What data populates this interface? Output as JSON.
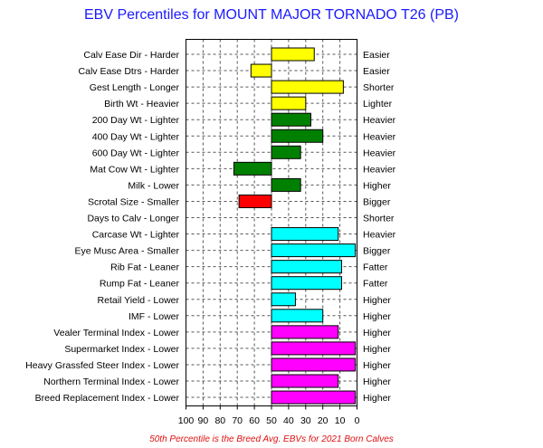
{
  "chart_data": {
    "type": "bar",
    "title": "EBV Percentiles for MOUNT MAJOR TORNADO T26 (PB)",
    "footnote": "50th Percentile is the Breed Avg. EBVs for 2021 Born Calves",
    "x_axis": {
      "range": [
        100,
        0
      ],
      "ticks": [
        "100",
        "90",
        "80",
        "70",
        "60",
        "50",
        "40",
        "30",
        "20",
        "10",
        "0"
      ],
      "grid": true
    },
    "colors": {
      "yellow": "#ffff00",
      "green": "#008000",
      "red": "#ff0000",
      "cyan": "#00ffff",
      "magenta": "#ff00ff"
    },
    "traits": [
      {
        "left_label": "Calv Ease Dir - Harder",
        "right_label": "Easier",
        "percentile": 25,
        "color": "yellow"
      },
      {
        "left_label": "Calv Ease Dtrs - Harder",
        "right_label": "Easier",
        "percentile": 62,
        "color": "yellow"
      },
      {
        "left_label": "Gest Length - Longer",
        "right_label": "Shorter",
        "percentile": 8,
        "color": "yellow"
      },
      {
        "left_label": "Birth Wt - Heavier",
        "right_label": "Lighter",
        "percentile": 30,
        "color": "yellow"
      },
      {
        "left_label": "200 Day Wt - Lighter",
        "right_label": "Heavier",
        "percentile": 27,
        "color": "green"
      },
      {
        "left_label": "400 Day Wt - Lighter",
        "right_label": "Heavier",
        "percentile": 20,
        "color": "green"
      },
      {
        "left_label": "600 Day Wt - Lighter",
        "right_label": "Heavier",
        "percentile": 33,
        "color": "green"
      },
      {
        "left_label": "Mat Cow Wt - Lighter",
        "right_label": "Heavier",
        "percentile": 72,
        "color": "green"
      },
      {
        "left_label": "Milk - Lower",
        "right_label": "Higher",
        "percentile": 33,
        "color": "green"
      },
      {
        "left_label": "Scrotal Size - Smaller",
        "right_label": "Bigger",
        "percentile": 69,
        "color": "red"
      },
      {
        "left_label": "Days to Calv - Longer",
        "right_label": "Shorter",
        "percentile": null,
        "color": null
      },
      {
        "left_label": "Carcase Wt - Lighter",
        "right_label": "Heavier",
        "percentile": 11,
        "color": "cyan"
      },
      {
        "left_label": "Eye Musc Area - Smaller",
        "right_label": "Bigger",
        "percentile": 1,
        "color": "cyan"
      },
      {
        "left_label": "Rib Fat - Leaner",
        "right_label": "Fatter",
        "percentile": 9,
        "color": "cyan"
      },
      {
        "left_label": "Rump Fat - Leaner",
        "right_label": "Fatter",
        "percentile": 9,
        "color": "cyan"
      },
      {
        "left_label": "Retail Yield - Lower",
        "right_label": "Higher",
        "percentile": 36,
        "color": "cyan"
      },
      {
        "left_label": "IMF - Lower",
        "right_label": "Higher",
        "percentile": 20,
        "color": "cyan"
      },
      {
        "left_label": "Vealer Terminal Index - Lower",
        "right_label": "Higher",
        "percentile": 11,
        "color": "magenta"
      },
      {
        "left_label": "Supermarket Index - Lower",
        "right_label": "Higher",
        "percentile": 1,
        "color": "magenta"
      },
      {
        "left_label": "Heavy Grassfed Steer Index - Lower",
        "right_label": "Higher",
        "percentile": 1,
        "color": "magenta"
      },
      {
        "left_label": "Northern Terminal Index - Lower",
        "right_label": "Higher",
        "percentile": 11,
        "color": "magenta"
      },
      {
        "left_label": "Breed Replacement Index - Lower",
        "right_label": "Higher",
        "percentile": 1,
        "color": "magenta"
      }
    ]
  }
}
